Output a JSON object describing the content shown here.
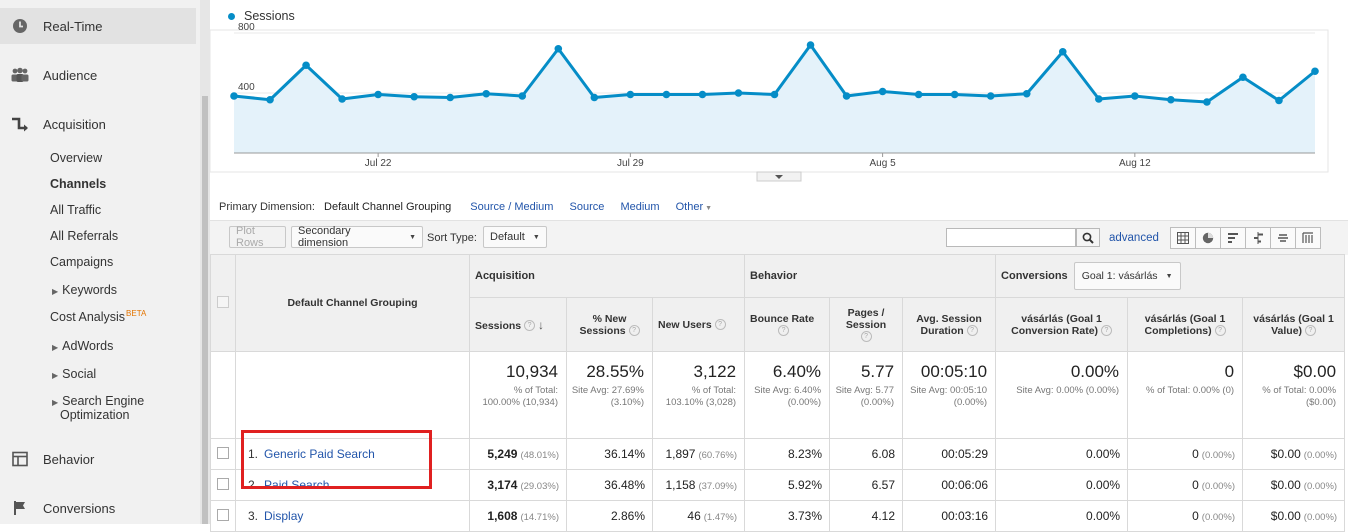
{
  "sidebar": {
    "realtime": "Real-Time",
    "audience": "Audience",
    "acquisition": "Acquisition",
    "acquisition_items": [
      "Overview",
      "Channels",
      "All Traffic",
      "All Referrals",
      "Campaigns"
    ],
    "keywords": "Keywords",
    "cost_analysis": "Cost Analysis",
    "beta": "BETA",
    "adwords": "AdWords",
    "social": "Social",
    "seo": "Search Engine Optimization",
    "behavior": "Behavior",
    "conversions": "Conversions"
  },
  "chart_data": {
    "type": "line",
    "legend": "Sessions",
    "y_ticks": [
      "800",
      "400"
    ],
    "ylim": [
      0,
      800
    ],
    "x_ticks": [
      "Jul 22",
      "Jul 29",
      "Aug 5",
      "Aug 12"
    ],
    "series": [
      {
        "name": "Sessions",
        "color": "#058dc7",
        "values": [
          380,
          355,
          585,
          360,
          390,
          375,
          370,
          395,
          380,
          695,
          370,
          390,
          390,
          390,
          400,
          390,
          720,
          380,
          410,
          390,
          390,
          380,
          395,
          675,
          360,
          380,
          355,
          340,
          505,
          350,
          545
        ]
      }
    ]
  },
  "dimension_bar": {
    "label": "Primary Dimension:",
    "current": "Default Channel Grouping",
    "options": [
      "Source / Medium",
      "Source",
      "Medium"
    ],
    "other": "Other"
  },
  "toolbar": {
    "plot_rows": "Plot Rows",
    "secondary_dimension": "Secondary dimension",
    "sort_type_label": "Sort Type:",
    "sort_type_value": "Default",
    "advanced": "advanced"
  },
  "table": {
    "dimension_header": "Default Channel Grouping",
    "groups": {
      "acquisition": "Acquisition",
      "behavior": "Behavior",
      "conversions": "Conversions"
    },
    "goal_select": "Goal 1: vásárlás",
    "columns": [
      "Sessions",
      "% New Sessions",
      "New Users",
      "Bounce Rate",
      "Pages / Session",
      "Avg. Session Duration",
      "vásárlás (Goal 1 Conversion Rate)",
      "vásárlás (Goal 1 Completions)",
      "vásárlás (Goal 1 Value)"
    ],
    "totals": [
      {
        "value": "10,934",
        "sub": "% of Total: 100.00% (10,934)"
      },
      {
        "value": "28.55%",
        "sub": "Site Avg: 27.69% (3.10%)"
      },
      {
        "value": "3,122",
        "sub": "% of Total: 103.10% (3,028)"
      },
      {
        "value": "6.40%",
        "sub": "Site Avg: 6.40% (0.00%)"
      },
      {
        "value": "5.77",
        "sub": "Site Avg: 5.77 (0.00%)"
      },
      {
        "value": "00:05:10",
        "sub": "Site Avg: 00:05:10 (0.00%)"
      },
      {
        "value": "0.00%",
        "sub": "Site Avg: 0.00% (0.00%)"
      },
      {
        "value": "0",
        "sub": "% of Total: 0.00% (0)"
      },
      {
        "value": "$0.00",
        "sub": "% of Total: 0.00% ($0.00)"
      }
    ],
    "rows": [
      {
        "num": "1.",
        "name": "Generic Paid Search",
        "sessions": "5,249",
        "sessions_pct": "(48.01%)",
        "new_sessions": "36.14%",
        "new_users": "1,897",
        "new_users_pct": "(60.76%)",
        "bounce": "8.23%",
        "pages": "6.08",
        "duration": "00:05:29",
        "conv_rate": "0.00%",
        "completions": "0",
        "completions_pct": "(0.00%)",
        "value": "$0.00",
        "value_pct": "(0.00%)"
      },
      {
        "num": "2.",
        "name": "Paid Search",
        "sessions": "3,174",
        "sessions_pct": "(29.03%)",
        "new_sessions": "36.48%",
        "new_users": "1,158",
        "new_users_pct": "(37.09%)",
        "bounce": "5.92%",
        "pages": "6.57",
        "duration": "00:06:06",
        "conv_rate": "0.00%",
        "completions": "0",
        "completions_pct": "(0.00%)",
        "value": "$0.00",
        "value_pct": "(0.00%)"
      },
      {
        "num": "3.",
        "name": "Display",
        "sessions": "1,608",
        "sessions_pct": "(14.71%)",
        "new_sessions": "2.86%",
        "new_users": "46",
        "new_users_pct": "(1.47%)",
        "bounce": "3.73%",
        "pages": "4.12",
        "duration": "00:03:16",
        "conv_rate": "0.00%",
        "completions": "0",
        "completions_pct": "(0.00%)",
        "value": "$0.00",
        "value_pct": "(0.00%)"
      }
    ]
  }
}
